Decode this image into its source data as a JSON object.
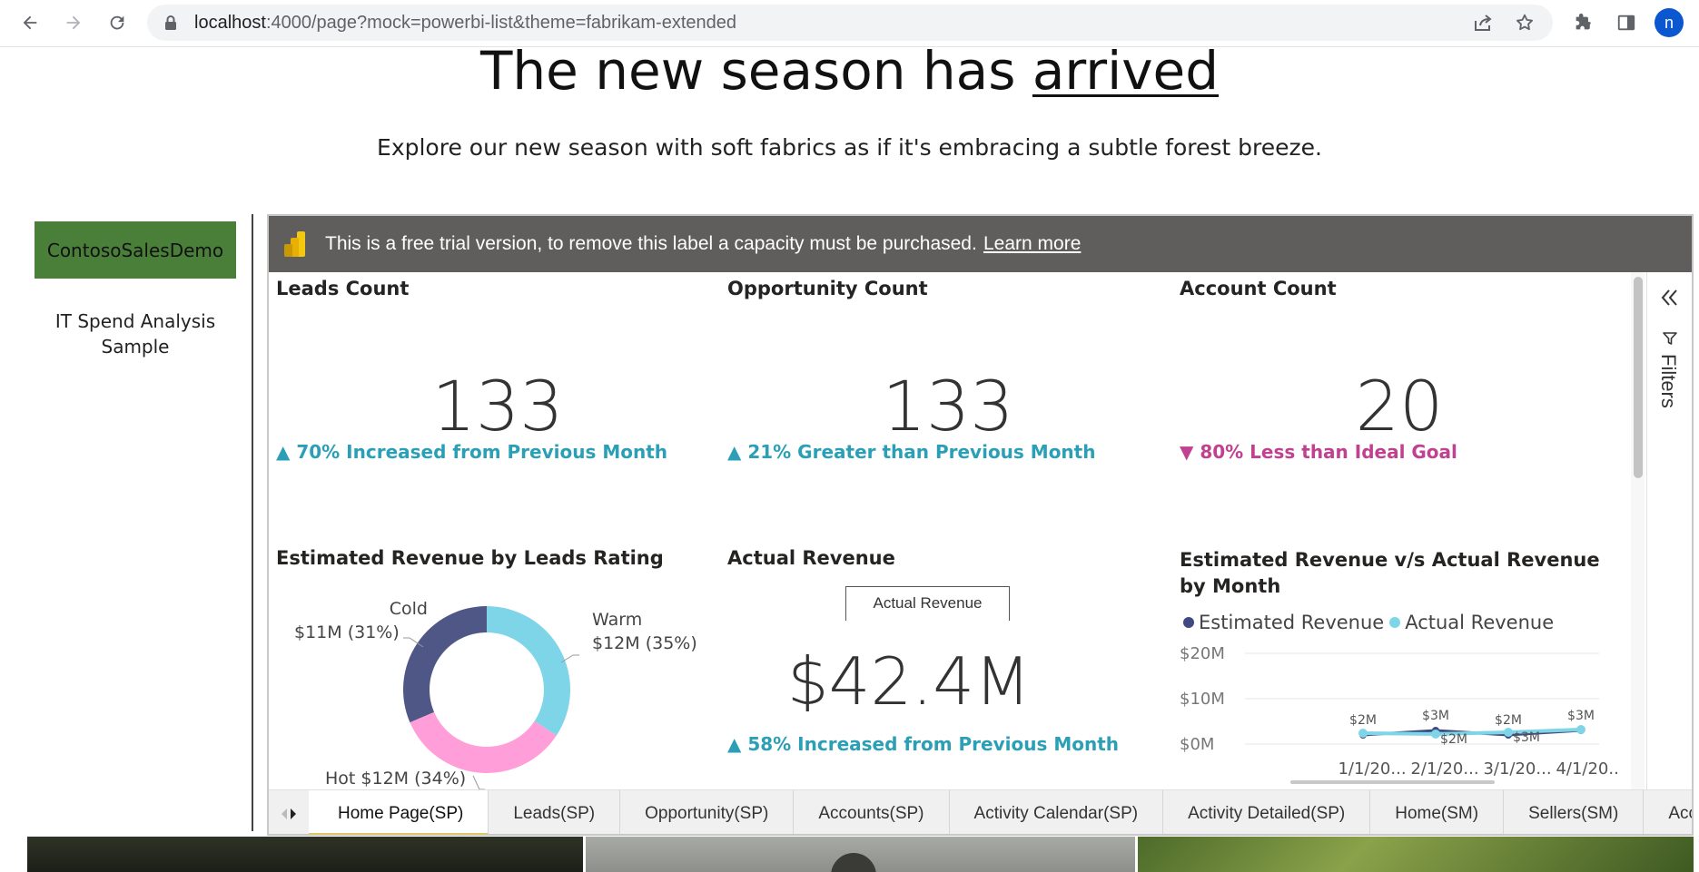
{
  "browser": {
    "url_host": "localhost",
    "url_rest": ":4000/page?mock=powerbi-list&theme=fabrikam-extended",
    "avatar_letter": "n"
  },
  "hero": {
    "title_prefix": "The new season has ",
    "title_underlined": "arrived",
    "subtitle": "Explore our new season with soft fabrics as if it's embracing a subtle forest breeze."
  },
  "sidebar": {
    "items": [
      {
        "label": "ContosoSalesDemo"
      },
      {
        "label": "IT Spend Analysis Sample"
      }
    ]
  },
  "report": {
    "trial_text": "This is a free trial version, to remove this label a capacity must be purchased.",
    "trial_link": "Learn more",
    "kpis": [
      {
        "title": "Leads Count",
        "value": "133",
        "trend": "▲ 70% Increased from Previous Month",
        "direction": "up"
      },
      {
        "title": "Opportunity Count",
        "value": "133",
        "trend": "▲ 21% Greater than Previous Month",
        "direction": "up"
      },
      {
        "title": "Account Count",
        "value": "20",
        "trend": "▼ 80% Less than Ideal Goal",
        "direction": "down"
      }
    ],
    "donut": {
      "title": "Estimated Revenue by Leads Rating",
      "labels": {
        "cold_name": "Cold",
        "cold_value": "$11M (31%)",
        "warm_name": "Warm",
        "warm_value": "$12M (35%)",
        "hot": "Hot $12M (34%)"
      }
    },
    "actual_revenue": {
      "title": "Actual Revenue",
      "tooltip": "Actual Revenue",
      "value": "$42.4M",
      "trend": "▲ 58% Increased from Previous Month"
    },
    "line": {
      "title": "Estimated Revenue v/s Actual Revenue by Month",
      "y_ticks": [
        "$20M",
        "$10M",
        "$0M"
      ],
      "x_ticks": [
        "1/1/20...",
        "2/1/20...",
        "3/1/20...",
        "4/1/20..."
      ]
    },
    "filters_label": "Filters",
    "tabs": [
      {
        "label": "Home Page(SP)",
        "active": true
      },
      {
        "label": "Leads(SP)",
        "active": false
      },
      {
        "label": "Opportunity(SP)",
        "active": false
      },
      {
        "label": "Accounts(SP)",
        "active": false
      },
      {
        "label": "Activity Calendar(SP)",
        "active": false
      },
      {
        "label": "Activity Detailed(SP)",
        "active": false
      },
      {
        "label": "Home(SM)",
        "active": false
      },
      {
        "label": "Sellers(SM)",
        "active": false
      },
      {
        "label": "Accour",
        "active": false
      }
    ]
  },
  "colors": {
    "cold": "#4f5787",
    "warm": "#7fd5e8",
    "hot": "#ff9ed8",
    "estimated": "#3f4a80",
    "actual": "#7fd5e8",
    "accent_green": "#4a7f3a",
    "tab_highlight": "#f2c811"
  },
  "chart_data": [
    {
      "type": "pie",
      "title": "Estimated Revenue by Leads Rating",
      "categories": [
        "Cold",
        "Warm",
        "Hot"
      ],
      "values": [
        11,
        12,
        12
      ],
      "percent": [
        31,
        35,
        34
      ],
      "unit": "$M"
    },
    {
      "type": "line",
      "title": "Estimated Revenue v/s Actual Revenue by Month",
      "categories": [
        "1/1/20...",
        "2/1/20...",
        "3/1/20...",
        "4/1/20..."
      ],
      "series": [
        {
          "name": "Estimated Revenue",
          "values": [
            2,
            3,
            2,
            3
          ],
          "labels": [
            "$2M",
            "$3M",
            "$2M",
            "$3M"
          ]
        },
        {
          "name": "Actual Revenue",
          "values": [
            2.4,
            2.2,
            2.6,
            3.2
          ],
          "labels": [
            "",
            "$2M",
            "$3M",
            ""
          ]
        }
      ],
      "ylim": [
        0,
        20
      ],
      "legend": "top-left"
    }
  ]
}
